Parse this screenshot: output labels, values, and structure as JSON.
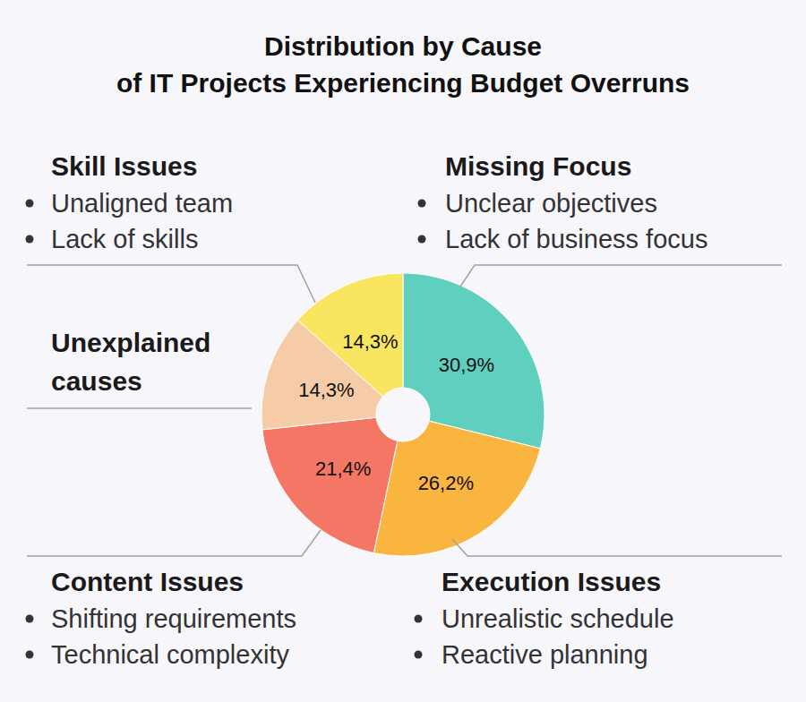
{
  "chart_data": {
    "type": "pie",
    "title": "Distribution by Cause\nof IT Projects Experiencing Budget Overruns",
    "categories": [
      "Missing Focus",
      "Execution Issues",
      "Content Issues",
      "Unexplained\ncauses",
      "Skill Issues"
    ],
    "values": [
      30.9,
      26.2,
      21.4,
      14.3,
      14.3
    ],
    "value_labels": [
      "30,9%",
      "26,2%",
      "21,4%",
      "14,3%",
      "14,3%"
    ],
    "colors": [
      "#5fcfbf",
      "#f9b53f",
      "#f47766",
      "#f5cba8",
      "#fae561"
    ],
    "descriptions": [
      [
        "Unclear objectives",
        "Lack of business focus"
      ],
      [
        "Unrealistic schedule",
        "Reactive planning"
      ],
      [
        "Shifting requirements",
        "Technical complexity"
      ],
      [],
      [
        "Unaligned team",
        "Lack of skills"
      ]
    ],
    "data_labels": true
  }
}
